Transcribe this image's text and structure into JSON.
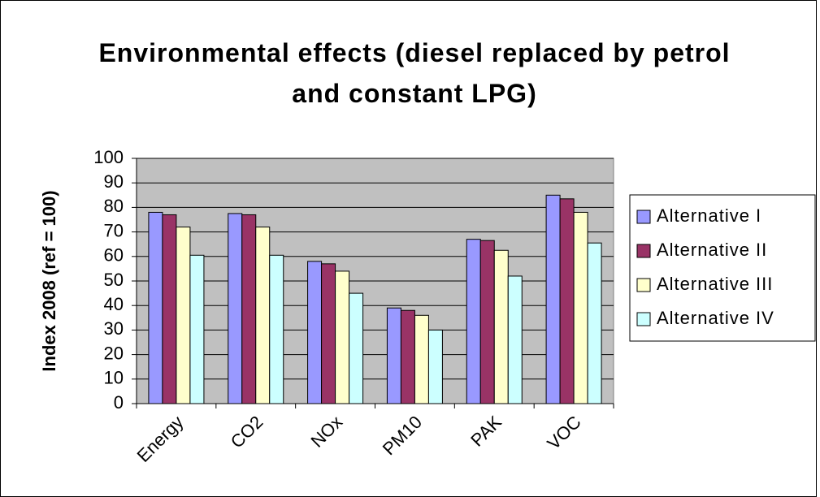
{
  "chart_data": {
    "type": "bar",
    "title": "Environmental effects (diesel replaced by petrol and constant LPG)",
    "y_label": "Index 2008 (ref = 100)",
    "categories": [
      "Energy",
      "CO2",
      "NOx",
      "PM10",
      "PAK",
      "VOC"
    ],
    "series": [
      {
        "name": "Alternative I",
        "color": "#9999ff",
        "values": [
          78,
          77.5,
          58,
          39,
          67,
          85
        ]
      },
      {
        "name": "Alternative II",
        "color": "#993366",
        "values": [
          77,
          77,
          57,
          38,
          66.5,
          83.5
        ]
      },
      {
        "name": "Alternative III",
        "color": "#ffffcc",
        "values": [
          72,
          72,
          54,
          36,
          62.5,
          78
        ]
      },
      {
        "name": "Alternative IV",
        "color": "#ccffff",
        "values": [
          60.5,
          60.5,
          45,
          30,
          52,
          65.5
        ]
      }
    ],
    "ylim": [
      0,
      100
    ],
    "yticks": [
      0,
      10,
      20,
      30,
      40,
      50,
      60,
      70,
      80,
      90,
      100
    ],
    "grid": true,
    "legend": "right"
  }
}
